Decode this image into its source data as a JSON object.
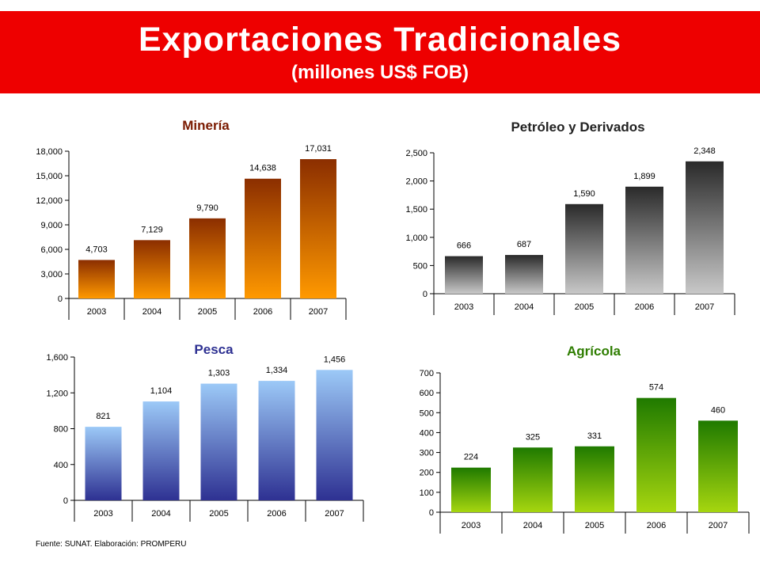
{
  "header": {
    "title": "Exportaciones Tradicionales",
    "subtitle": "(millones US$ FOB)",
    "background_color": "#ee0000"
  },
  "footer": {
    "source": "Fuente: SUNAT. Elaboración: PROMPERU"
  },
  "chart_data": [
    {
      "type": "bar",
      "title": "Minería",
      "title_color": "#7a1a00",
      "categories": [
        "2003",
        "2004",
        "2005",
        "2006",
        "2007"
      ],
      "values": [
        4703,
        7129,
        9790,
        14638,
        17031
      ],
      "value_labels": [
        "4,703",
        "7,129",
        "9,790",
        "14,638",
        "17,031"
      ],
      "ylim": [
        0,
        18000
      ],
      "yticks": [
        0,
        3000,
        6000,
        9000,
        12000,
        15000,
        18000
      ],
      "ytick_labels": [
        "0",
        "3,000",
        "6,000",
        "9,000",
        "12,000",
        "15,000",
        "18,000"
      ],
      "bar_gradient": [
        "#8b2e00",
        "#ff9900"
      ],
      "grid": false
    },
    {
      "type": "bar",
      "title": "Petróleo y Derivados",
      "title_color": "#222222",
      "categories": [
        "2003",
        "2004",
        "2005",
        "2006",
        "2007"
      ],
      "values": [
        666,
        687,
        1590,
        1899,
        2348
      ],
      "value_labels": [
        "666",
        "687",
        "1,590",
        "1,899",
        "2,348"
      ],
      "ylim": [
        0,
        2500
      ],
      "yticks": [
        0,
        500,
        1000,
        1500,
        2000,
        2500
      ],
      "ytick_labels": [
        "0",
        "500",
        "1,000",
        "1,500",
        "2,000",
        "2,500"
      ],
      "bar_gradient": [
        "#2a2a2a",
        "#c8c8c8"
      ],
      "grid": false
    },
    {
      "type": "bar",
      "title": "Pesca",
      "title_color": "#2e3192",
      "categories": [
        "2003",
        "2004",
        "2005",
        "2006",
        "2007"
      ],
      "values": [
        821,
        1104,
        1303,
        1334,
        1456
      ],
      "value_labels": [
        "821",
        "1,104",
        "1,303",
        "1,334",
        "1,456"
      ],
      "ylim": [
        0,
        1600
      ],
      "yticks": [
        0,
        400,
        800,
        1200,
        1600
      ],
      "ytick_labels": [
        "0",
        "400",
        "800",
        "1,200",
        "1,600"
      ],
      "bar_gradient": [
        "#9cc9f7",
        "#2e3192"
      ],
      "grid": false
    },
    {
      "type": "bar",
      "title": "Agrícola",
      "title_color": "#2e7d00",
      "categories": [
        "2003",
        "2004",
        "2005",
        "2006",
        "2007"
      ],
      "values": [
        224,
        325,
        331,
        574,
        460
      ],
      "value_labels": [
        "224",
        "325",
        "331",
        "574",
        "460"
      ],
      "ylim": [
        0,
        700
      ],
      "yticks": [
        0,
        100,
        200,
        300,
        400,
        500,
        600,
        700
      ],
      "ytick_labels": [
        "0",
        "100",
        "200",
        "300",
        "400",
        "500",
        "600",
        "700"
      ],
      "bar_gradient": [
        "#1f7a00",
        "#a6d60f"
      ],
      "grid": false
    }
  ]
}
